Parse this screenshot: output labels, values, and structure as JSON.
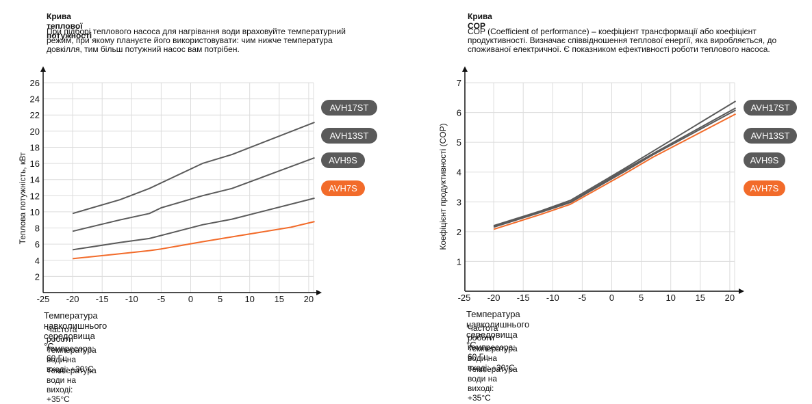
{
  "panels": [
    {
      "title": "Крива теплової потужності",
      "description": "При підборі теплового насоса для нагрівання води враховуйте температурний режим, при якому плануєте його використовувати: чим нижче температура довкілля, тим більш потужний насос вам потрібен.",
      "xlabel_text": "Температура навколишнього середовища  °C",
      "notes": [
        "Частота роботи компресора: 60 Гц",
        "Температура води на вході: +30°C",
        "Температура води на виході: +35°C"
      ],
      "legend": [
        {
          "label": "AVH17ST",
          "color": "#5a5a5a"
        },
        {
          "label": "AVH13ST",
          "color": "#5a5a5a"
        },
        {
          "label": "AVH9S",
          "color": "#5a5a5a"
        },
        {
          "label": "AVH7S",
          "color": "#f26b2a"
        }
      ]
    },
    {
      "title": "Крива COP",
      "description": "COP (Coefficient of performance) – коефіцієнт трансформації або коефіцієнт продуктивності. Визначає співвідношення теплової енергії, яка виробляється, до споживаної електричної. Є показником ефективності роботи теплового насоса.",
      "xlabel_text": "Температура навколишнього середовища  °C",
      "notes": [
        "Частота роботи компресора: 60 Гц",
        "Температура води на вході: +30°C",
        "Температура води на виході: +35°C"
      ],
      "legend": [
        {
          "label": "AVH17ST",
          "color": "#5a5a5a"
        },
        {
          "label": "AVH13ST",
          "color": "#5a5a5a"
        },
        {
          "label": "AVH9S",
          "color": "#5a5a5a"
        },
        {
          "label": "AVH7S",
          "color": "#f26b2a"
        }
      ]
    }
  ],
  "chart_data": [
    {
      "type": "line",
      "title": "Крива теплової потужності",
      "xlabel": "",
      "ylabel": "Теплова потужність, кВт",
      "xlim": [
        -25,
        21
      ],
      "ylim": [
        0,
        26
      ],
      "xticks": [
        -25,
        -20,
        -15,
        -10,
        -5,
        0,
        5,
        10,
        15,
        20
      ],
      "yticks": [
        2,
        4,
        6,
        8,
        10,
        12,
        14,
        16,
        18,
        20,
        22,
        24,
        26
      ],
      "grid": true,
      "legend_position": "right",
      "series": [
        {
          "name": "AVH17ST",
          "color": "#5a5a5a",
          "x": [
            -20,
            -12,
            -7,
            2,
            7,
            21
          ],
          "y": [
            9.8,
            11.5,
            12.9,
            16.0,
            17.1,
            21.1
          ]
        },
        {
          "name": "AVH13ST",
          "color": "#5a5a5a",
          "x": [
            -20,
            -12,
            -7,
            -5,
            2,
            7,
            21
          ],
          "y": [
            7.6,
            9.0,
            9.8,
            10.5,
            12.0,
            12.9,
            16.7
          ]
        },
        {
          "name": "AVH9S",
          "color": "#5a5a5a",
          "x": [
            -20,
            -12,
            -7,
            2,
            7,
            21
          ],
          "y": [
            5.3,
            6.2,
            6.7,
            8.4,
            9.1,
            11.7
          ]
        },
        {
          "name": "AVH7S",
          "color": "#f26b2a",
          "x": [
            -20,
            -12,
            -7,
            -5,
            2,
            7,
            17,
            21
          ],
          "y": [
            4.2,
            4.8,
            5.2,
            5.4,
            6.3,
            6.9,
            8.1,
            8.8
          ]
        }
      ]
    },
    {
      "type": "line",
      "title": "Крива COP",
      "xlabel": "",
      "ylabel": "Коефіцієнт продуктивності (COP)",
      "xlim": [
        -25,
        21
      ],
      "ylim": [
        0,
        7
      ],
      "xticks": [
        -25,
        -20,
        -15,
        -10,
        -5,
        0,
        5,
        10,
        15,
        20
      ],
      "yticks": [
        1,
        2,
        3,
        4,
        5,
        6,
        7
      ],
      "grid": true,
      "legend_position": "right",
      "series": [
        {
          "name": "AVH17ST",
          "color": "#5a5a5a",
          "x": [
            -20,
            -12,
            -7,
            2,
            7,
            21
          ],
          "y": [
            2.2,
            2.7,
            3.05,
            4.1,
            4.7,
            6.38
          ]
        },
        {
          "name": "AVH13ST",
          "color": "#5a5a5a",
          "x": [
            -20,
            -12,
            -7,
            2,
            7,
            21
          ],
          "y": [
            2.18,
            2.68,
            3.0,
            4.05,
            4.62,
            6.15
          ]
        },
        {
          "name": "AVH9S",
          "color": "#5a5a5a",
          "x": [
            -20,
            -12,
            -7,
            2,
            7,
            21
          ],
          "y": [
            2.15,
            2.65,
            2.98,
            4.0,
            4.58,
            6.08
          ]
        },
        {
          "name": "AVH7S",
          "color": "#f26b2a",
          "x": [
            -20,
            -12,
            -7,
            2,
            7,
            21
          ],
          "y": [
            2.08,
            2.58,
            2.92,
            3.92,
            4.5,
            5.95
          ]
        }
      ]
    }
  ]
}
